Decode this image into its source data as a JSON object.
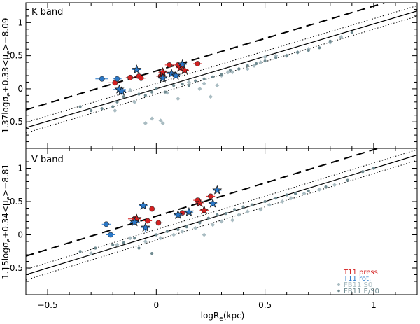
{
  "figure": {
    "xlabel": "logR",
    "xlabel_sub": "e",
    "xlabel_unit": "(kpc)"
  },
  "colors": {
    "t11_press": "#d42020",
    "t11_rot": "#2a78c8",
    "fb11_s0": "#a9bcc2",
    "fb11_es0": "#6f8a90",
    "errorbar_press": "#d42020",
    "errorbar_rot": "#2a78c8"
  },
  "legend": {
    "entries": [
      {
        "label": "T11 press.",
        "color_key": "t11_press",
        "marker": "none"
      },
      {
        "label": "T11 rot.",
        "color_key": "t11_rot",
        "marker": "none"
      },
      {
        "label": "FB11 S0",
        "color_key": "fb11_s0",
        "marker": "diamond"
      },
      {
        "label": "FB11 E/S0",
        "color_key": "fb11_es0",
        "marker": "dot"
      }
    ]
  },
  "chart_data": [
    {
      "type": "scatter",
      "panel_label": "K band",
      "ylabel_parts": [
        "1.37logσ",
        "e",
        "+0.33<μ",
        "e",
        ">−8.09"
      ],
      "xlim": [
        -0.6,
        1.2
      ],
      "ylim": [
        -0.9,
        1.3
      ],
      "xticks": [
        -0.5,
        0,
        0.5,
        1
      ],
      "yticks": [
        -0.5,
        0,
        0.5,
        1
      ],
      "lines": {
        "solid": {
          "slope": 0.98,
          "intercept": 0.0
        },
        "dotted_upper": {
          "slope": 0.98,
          "intercept": 0.08
        },
        "dotted_lower": {
          "slope": 0.98,
          "intercept": -0.08
        },
        "dashed": {
          "slope": 0.98,
          "intercept": 0.27
        }
      },
      "series": [
        {
          "name": "T11 press.",
          "marker": "circle",
          "color_key": "t11_press",
          "points": [
            {
              "x": -0.19,
              "y": 0.09,
              "xerr": 0.03,
              "yerr": 0.04
            },
            {
              "x": -0.12,
              "y": 0.17,
              "xerr": 0.02,
              "yerr": 0.03
            },
            {
              "x": -0.08,
              "y": 0.19,
              "xerr": 0.02,
              "yerr": 0.02
            },
            {
              "x": -0.07,
              "y": 0.16,
              "xerr": 0.02,
              "yerr": 0.02
            },
            {
              "x": 0.02,
              "y": 0.19,
              "xerr": 0.02,
              "yerr": 0.02
            },
            {
              "x": 0.06,
              "y": 0.36,
              "xerr": 0.02,
              "yerr": 0.02
            },
            {
              "x": 0.1,
              "y": 0.36,
              "xerr": 0.02,
              "yerr": 0.02
            },
            {
              "x": 0.19,
              "y": 0.38,
              "xerr": 0.02,
              "yerr": 0.02
            }
          ]
        },
        {
          "name": "T11 press.",
          "marker": "star",
          "color_key": "t11_press",
          "points": [
            {
              "x": 0.03,
              "y": 0.25,
              "xerr": 0.02,
              "yerr": 0.03
            },
            {
              "x": 0.11,
              "y": 0.32,
              "xerr": 0.02,
              "yerr": 0.02
            },
            {
              "x": 0.13,
              "y": 0.28,
              "xerr": 0.02,
              "yerr": 0.02
            }
          ]
        },
        {
          "name": "T11 rot.",
          "marker": "circle",
          "color_key": "t11_rot",
          "points": [
            {
              "x": -0.25,
              "y": 0.15,
              "xerr": 0.03,
              "yerr": 0.03
            },
            {
              "x": -0.18,
              "y": 0.15,
              "xerr": 0.02,
              "yerr": 0.02
            }
          ]
        },
        {
          "name": "T11 rot.",
          "marker": "star",
          "color_key": "t11_rot",
          "points": [
            {
              "x": -0.17,
              "y": -0.01,
              "xerr": 0.03,
              "yerr": 0.06
            },
            {
              "x": -0.16,
              "y": -0.04,
              "xerr": 0.02,
              "yerr": 0.05
            },
            {
              "x": -0.09,
              "y": 0.29,
              "xerr": 0.02,
              "yerr": 0.03
            },
            {
              "x": 0.03,
              "y": 0.16,
              "xerr": 0.02,
              "yerr": 0.03
            },
            {
              "x": 0.07,
              "y": 0.23,
              "xerr": 0.02,
              "yerr": 0.02
            },
            {
              "x": 0.12,
              "y": 0.37,
              "xerr": 0.02,
              "yerr": 0.02
            },
            {
              "x": 0.09,
              "y": 0.2,
              "xerr": 0.02,
              "yerr": 0.02
            }
          ]
        },
        {
          "name": "FB11 S0",
          "marker": "diamond",
          "color_key": "fb11_s0",
          "points": [
            {
              "x": -0.19,
              "y": -0.33
            },
            {
              "x": -0.12,
              "y": -0.02
            },
            {
              "x": -0.1,
              "y": -0.2
            },
            {
              "x": -0.05,
              "y": -0.52
            },
            {
              "x": -0.02,
              "y": -0.45
            },
            {
              "x": 0.02,
              "y": -0.48
            },
            {
              "x": 0.03,
              "y": -0.52
            },
            {
              "x": 0.05,
              "y": -0.06
            },
            {
              "x": 0.1,
              "y": -0.15
            },
            {
              "x": 0.15,
              "y": 0.1
            },
            {
              "x": 0.2,
              "y": 0.0
            },
            {
              "x": 0.22,
              "y": 0.08
            },
            {
              "x": 0.25,
              "y": -0.12
            },
            {
              "x": 0.28,
              "y": 0.05
            },
            {
              "x": 0.3,
              "y": 0.2
            },
            {
              "x": 0.33,
              "y": 0.25
            },
            {
              "x": 0.35,
              "y": 0.25
            },
            {
              "x": 0.38,
              "y": 0.3
            },
            {
              "x": 0.42,
              "y": 0.3
            },
            {
              "x": 0.45,
              "y": 0.35
            },
            {
              "x": 0.48,
              "y": 0.4
            },
            {
              "x": 0.5,
              "y": 0.48
            },
            {
              "x": 0.55,
              "y": 0.5
            },
            {
              "x": 0.6,
              "y": 0.5
            },
            {
              "x": 0.65,
              "y": 0.55
            },
            {
              "x": 0.7,
              "y": 0.6
            },
            {
              "x": 0.8,
              "y": 0.7
            },
            {
              "x": 0.85,
              "y": 0.78
            }
          ]
        },
        {
          "name": "FB11 E/S0",
          "marker": "dot",
          "color_key": "fb11_es0",
          "points": [
            {
              "x": -0.35,
              "y": -0.27
            },
            {
              "x": -0.3,
              "y": -0.33
            },
            {
              "x": -0.25,
              "y": -0.3
            },
            {
              "x": -0.2,
              "y": -0.27
            },
            {
              "x": -0.18,
              "y": -0.2
            },
            {
              "x": -0.15,
              "y": -0.12
            },
            {
              "x": -0.08,
              "y": -0.08
            },
            {
              "x": -0.05,
              "y": -0.1
            },
            {
              "x": -0.02,
              "y": -0.05
            },
            {
              "x": 0.0,
              "y": 0.0
            },
            {
              "x": 0.04,
              "y": -0.05
            },
            {
              "x": 0.08,
              "y": 0.05
            },
            {
              "x": 0.12,
              "y": 0.07
            },
            {
              "x": 0.15,
              "y": 0.05
            },
            {
              "x": 0.18,
              "y": 0.12
            },
            {
              "x": 0.22,
              "y": 0.15
            },
            {
              "x": 0.26,
              "y": 0.18
            },
            {
              "x": 0.3,
              "y": 0.22
            },
            {
              "x": 0.34,
              "y": 0.28
            },
            {
              "x": 0.38,
              "y": 0.3
            },
            {
              "x": 0.42,
              "y": 0.35
            },
            {
              "x": 0.46,
              "y": 0.38
            },
            {
              "x": 0.5,
              "y": 0.42
            },
            {
              "x": 0.55,
              "y": 0.47
            },
            {
              "x": 0.6,
              "y": 0.5
            },
            {
              "x": 0.65,
              "y": 0.55
            },
            {
              "x": 0.7,
              "y": 0.58
            },
            {
              "x": 0.75,
              "y": 0.62
            },
            {
              "x": 0.8,
              "y": 0.72
            },
            {
              "x": 0.9,
              "y": 0.85
            }
          ]
        }
      ]
    },
    {
      "type": "scatter",
      "panel_label": "V band",
      "ylabel_parts": [
        "1.15logσ",
        "e",
        "+0.34<μ",
        "e",
        ">−8.81"
      ],
      "xlim": [
        -0.6,
        1.2
      ],
      "ylim": [
        -0.9,
        1.3
      ],
      "xticks": [
        -0.5,
        0,
        0.5,
        1
      ],
      "yticks": [
        -0.5,
        0,
        0.5,
        1
      ],
      "lines": {
        "solid": {
          "slope": 1.0,
          "intercept": 0.0
        },
        "dotted_upper": {
          "slope": 1.0,
          "intercept": 0.08
        },
        "dotted_lower": {
          "slope": 1.0,
          "intercept": -0.08
        },
        "dashed": {
          "slope": 1.0,
          "intercept": 0.28
        }
      },
      "series": [
        {
          "name": "T11 press.",
          "marker": "circle",
          "color_key": "t11_press",
          "points": [
            {
              "x": -0.1,
              "y": 0.24,
              "xerr": 0.03,
              "yerr": 0.03
            },
            {
              "x": -0.04,
              "y": 0.21,
              "xerr": 0.02,
              "yerr": 0.02
            },
            {
              "x": -0.02,
              "y": 0.39,
              "xerr": 0.02,
              "yerr": 0.02
            },
            {
              "x": 0.01,
              "y": 0.18,
              "xerr": 0.02,
              "yerr": 0.02
            },
            {
              "x": 0.12,
              "y": 0.33,
              "xerr": 0.02,
              "yerr": 0.02
            },
            {
              "x": 0.19,
              "y": 0.52,
              "xerr": 0.02,
              "yerr": 0.02
            },
            {
              "x": 0.25,
              "y": 0.58,
              "xerr": 0.02,
              "yerr": 0.02
            }
          ]
        },
        {
          "name": "T11 press.",
          "marker": "star",
          "color_key": "t11_press",
          "points": [
            {
              "x": -0.09,
              "y": 0.24,
              "xerr": 0.02,
              "yerr": 0.03
            },
            {
              "x": 0.2,
              "y": 0.48,
              "xerr": 0.02,
              "yerr": 0.02
            },
            {
              "x": 0.22,
              "y": 0.37,
              "xerr": 0.02,
              "yerr": 0.02
            }
          ]
        },
        {
          "name": "T11 rot.",
          "marker": "circle",
          "color_key": "t11_rot",
          "points": [
            {
              "x": -0.23,
              "y": 0.16,
              "xerr": 0.02,
              "yerr": 0.02
            },
            {
              "x": -0.21,
              "y": 0.0,
              "xerr": 0.02,
              "yerr": 0.02
            }
          ]
        },
        {
          "name": "T11 rot.",
          "marker": "star",
          "color_key": "t11_rot",
          "points": [
            {
              "x": -0.1,
              "y": 0.19,
              "xerr": 0.02,
              "yerr": 0.03
            },
            {
              "x": -0.06,
              "y": 0.44,
              "xerr": 0.02,
              "yerr": 0.02
            },
            {
              "x": -0.05,
              "y": 0.11,
              "xerr": 0.02,
              "yerr": 0.07
            },
            {
              "x": 0.1,
              "y": 0.3,
              "xerr": 0.02,
              "yerr": 0.02
            },
            {
              "x": 0.15,
              "y": 0.34,
              "xerr": 0.02,
              "yerr": 0.02
            },
            {
              "x": 0.26,
              "y": 0.47,
              "xerr": 0.02,
              "yerr": 0.02
            },
            {
              "x": 0.28,
              "y": 0.67,
              "xerr": 0.02,
              "yerr": 0.02
            }
          ]
        },
        {
          "name": "FB11 S0",
          "marker": "diamond",
          "color_key": "fb11_s0",
          "points": [
            {
              "x": -0.3,
              "y": -0.28
            },
            {
              "x": -0.18,
              "y": -0.15
            },
            {
              "x": -0.12,
              "y": -0.05
            },
            {
              "x": -0.05,
              "y": -0.1
            },
            {
              "x": 0.02,
              "y": -0.05
            },
            {
              "x": 0.08,
              "y": 0.0
            },
            {
              "x": 0.12,
              "y": 0.05
            },
            {
              "x": 0.18,
              "y": 0.1
            },
            {
              "x": 0.22,
              "y": 0.0
            },
            {
              "x": 0.26,
              "y": 0.15
            },
            {
              "x": 0.3,
              "y": 0.2
            },
            {
              "x": 0.35,
              "y": 0.22
            },
            {
              "x": 0.38,
              "y": 0.3
            },
            {
              "x": 0.42,
              "y": 0.35
            },
            {
              "x": 0.48,
              "y": 0.38
            },
            {
              "x": 0.52,
              "y": 0.45
            },
            {
              "x": 0.58,
              "y": 0.5
            },
            {
              "x": 0.62,
              "y": 0.55
            },
            {
              "x": 0.68,
              "y": 0.62
            },
            {
              "x": 0.75,
              "y": 0.68
            },
            {
              "x": 0.82,
              "y": 0.75
            }
          ]
        },
        {
          "name": "FB11 E/S0",
          "marker": "dot",
          "color_key": "fb11_es0",
          "points": [
            {
              "x": -0.35,
              "y": -0.25
            },
            {
              "x": -0.28,
              "y": -0.2
            },
            {
              "x": -0.2,
              "y": -0.15
            },
            {
              "x": -0.15,
              "y": -0.12
            },
            {
              "x": -0.1,
              "y": -0.05
            },
            {
              "x": -0.08,
              "y": -0.2
            },
            {
              "x": -0.02,
              "y": -0.28
            },
            {
              "x": 0.0,
              "y": 0.0
            },
            {
              "x": 0.05,
              "y": 0.05
            },
            {
              "x": 0.1,
              "y": 0.08
            },
            {
              "x": 0.14,
              "y": 0.12
            },
            {
              "x": 0.2,
              "y": 0.18
            },
            {
              "x": 0.24,
              "y": 0.25
            },
            {
              "x": 0.28,
              "y": 0.3
            },
            {
              "x": 0.32,
              "y": 0.32
            },
            {
              "x": 0.36,
              "y": 0.38
            },
            {
              "x": 0.4,
              "y": 0.42
            },
            {
              "x": 0.44,
              "y": 0.45
            },
            {
              "x": 0.5,
              "y": 0.5
            },
            {
              "x": 0.55,
              "y": 0.55
            },
            {
              "x": 0.6,
              "y": 0.6
            },
            {
              "x": 0.64,
              "y": 0.62
            },
            {
              "x": 0.7,
              "y": 0.66
            },
            {
              "x": 0.78,
              "y": 0.72
            },
            {
              "x": 0.88,
              "y": 0.82
            },
            {
              "x": 0.95,
              "y": 0.95
            },
            {
              "x": 1.0,
              "y": 1.0
            }
          ]
        }
      ]
    }
  ]
}
